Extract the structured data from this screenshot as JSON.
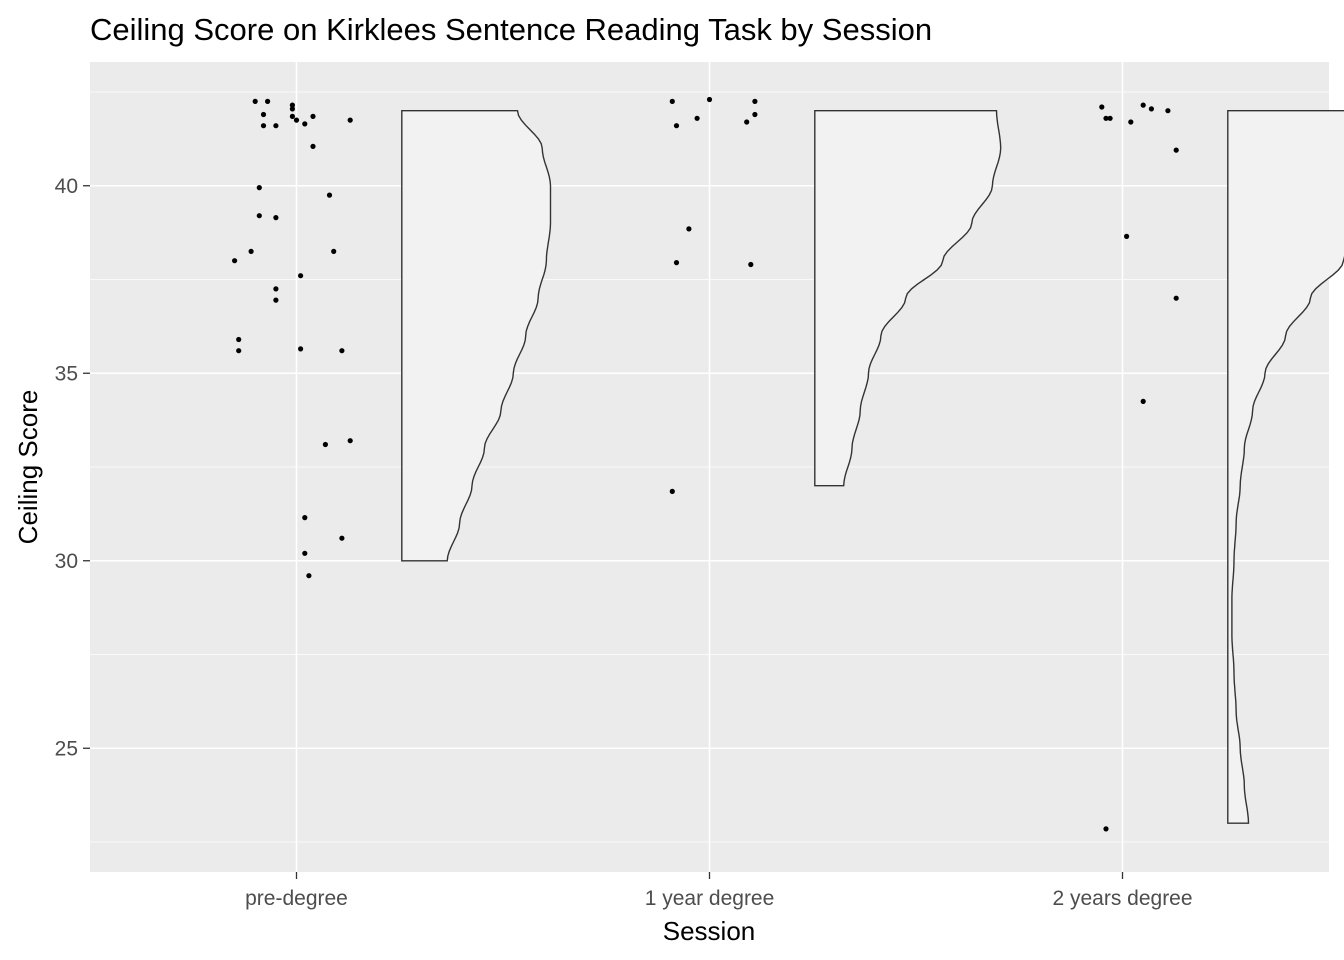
{
  "chart_data": {
    "type": "scatter",
    "title": "Ceiling Score on Kirklees Sentence Reading Task by Session",
    "xlabel": "Session",
    "ylabel": "Ceiling Score",
    "categories": [
      "pre-degree",
      "1 year degree",
      "2 years degree"
    ],
    "yticks": [
      25,
      30,
      35,
      40
    ],
    "ylim": [
      21.7,
      43.3
    ],
    "grid": true,
    "colors": {
      "panel": "#EBEBEB",
      "grid": "#FFFFFF",
      "points": "#000000",
      "violin_fill": "#F2F2F2",
      "violin_stroke": "#333333"
    },
    "series": [
      {
        "category": "pre-degree",
        "points": [
          [
            -0.1,
            42.25
          ],
          [
            -0.07,
            42.25
          ],
          [
            -0.01,
            42.15
          ],
          [
            -0.01,
            42.05
          ],
          [
            -0.08,
            41.9
          ],
          [
            -0.01,
            41.85
          ],
          [
            0.04,
            41.85
          ],
          [
            0.0,
            41.75
          ],
          [
            0.13,
            41.75
          ],
          [
            0.02,
            41.65
          ],
          [
            -0.08,
            41.6
          ],
          [
            -0.05,
            41.6
          ],
          [
            0.04,
            41.05
          ],
          [
            -0.09,
            39.95
          ],
          [
            0.08,
            39.75
          ],
          [
            -0.09,
            39.2
          ],
          [
            -0.05,
            39.15
          ],
          [
            -0.11,
            38.25
          ],
          [
            0.09,
            38.25
          ],
          [
            -0.15,
            38.0
          ],
          [
            0.01,
            37.6
          ],
          [
            -0.05,
            37.25
          ],
          [
            -0.05,
            36.95
          ],
          [
            -0.14,
            35.9
          ],
          [
            -0.14,
            35.6
          ],
          [
            0.01,
            35.65
          ],
          [
            0.11,
            35.6
          ],
          [
            0.13,
            33.2
          ],
          [
            0.07,
            33.1
          ],
          [
            0.02,
            31.15
          ],
          [
            0.11,
            30.6
          ],
          [
            0.02,
            30.2
          ],
          [
            0.03,
            29.6
          ]
        ],
        "distribution": {
          "min": 30,
          "max": 42,
          "profile": [
            [
              30,
              0.11
            ],
            [
              31,
              0.14
            ],
            [
              32,
              0.17
            ],
            [
              33,
              0.2
            ],
            [
              34,
              0.24
            ],
            [
              35,
              0.27
            ],
            [
              36,
              0.3
            ],
            [
              37,
              0.33
            ],
            [
              38,
              0.35
            ],
            [
              39,
              0.36
            ],
            [
              40,
              0.36
            ],
            [
              41,
              0.34
            ],
            [
              42,
              0.28
            ]
          ]
        }
      },
      {
        "category": "1 year degree",
        "points": [
          [
            -0.09,
            42.25
          ],
          [
            0.0,
            42.3
          ],
          [
            0.11,
            42.25
          ],
          [
            0.11,
            41.9
          ],
          [
            -0.03,
            41.8
          ],
          [
            0.09,
            41.7
          ],
          [
            -0.08,
            41.6
          ],
          [
            -0.05,
            38.85
          ],
          [
            -0.08,
            37.95
          ],
          [
            0.1,
            37.9
          ],
          [
            -0.09,
            31.85
          ]
        ],
        "distribution": {
          "min": 32,
          "max": 42,
          "profile": [
            [
              32,
              0.07
            ],
            [
              33,
              0.09
            ],
            [
              34,
              0.11
            ],
            [
              35,
              0.13
            ],
            [
              36,
              0.16
            ],
            [
              37,
              0.22
            ],
            [
              38,
              0.31
            ],
            [
              39,
              0.38
            ],
            [
              40,
              0.43
            ],
            [
              41,
              0.45
            ],
            [
              42,
              0.44
            ]
          ]
        }
      },
      {
        "category": "2 years degree",
        "points": [
          [
            -0.05,
            42.1
          ],
          [
            0.05,
            42.15
          ],
          [
            0.07,
            42.05
          ],
          [
            0.11,
            42.0
          ],
          [
            -0.04,
            41.8
          ],
          [
            -0.03,
            41.8
          ],
          [
            0.02,
            41.7
          ],
          [
            0.13,
            40.95
          ],
          [
            0.01,
            38.65
          ],
          [
            0.13,
            37.0
          ],
          [
            0.05,
            34.25
          ],
          [
            -0.04,
            22.85
          ]
        ],
        "distribution": {
          "min": 23,
          "max": 42,
          "profile": [
            [
              23,
              0.05
            ],
            [
              24,
              0.04
            ],
            [
              25,
              0.03
            ],
            [
              26,
              0.02
            ],
            [
              27,
              0.015
            ],
            [
              28,
              0.01
            ],
            [
              29,
              0.01
            ],
            [
              30,
              0.015
            ],
            [
              31,
              0.02
            ],
            [
              32,
              0.03
            ],
            [
              33,
              0.04
            ],
            [
              34,
              0.06
            ],
            [
              35,
              0.09
            ],
            [
              36,
              0.14
            ],
            [
              37,
              0.2
            ],
            [
              38,
              0.28
            ],
            [
              39,
              0.35
            ],
            [
              40,
              0.39
            ],
            [
              41,
              0.41
            ],
            [
              42,
              0.41
            ]
          ]
        }
      }
    ]
  }
}
